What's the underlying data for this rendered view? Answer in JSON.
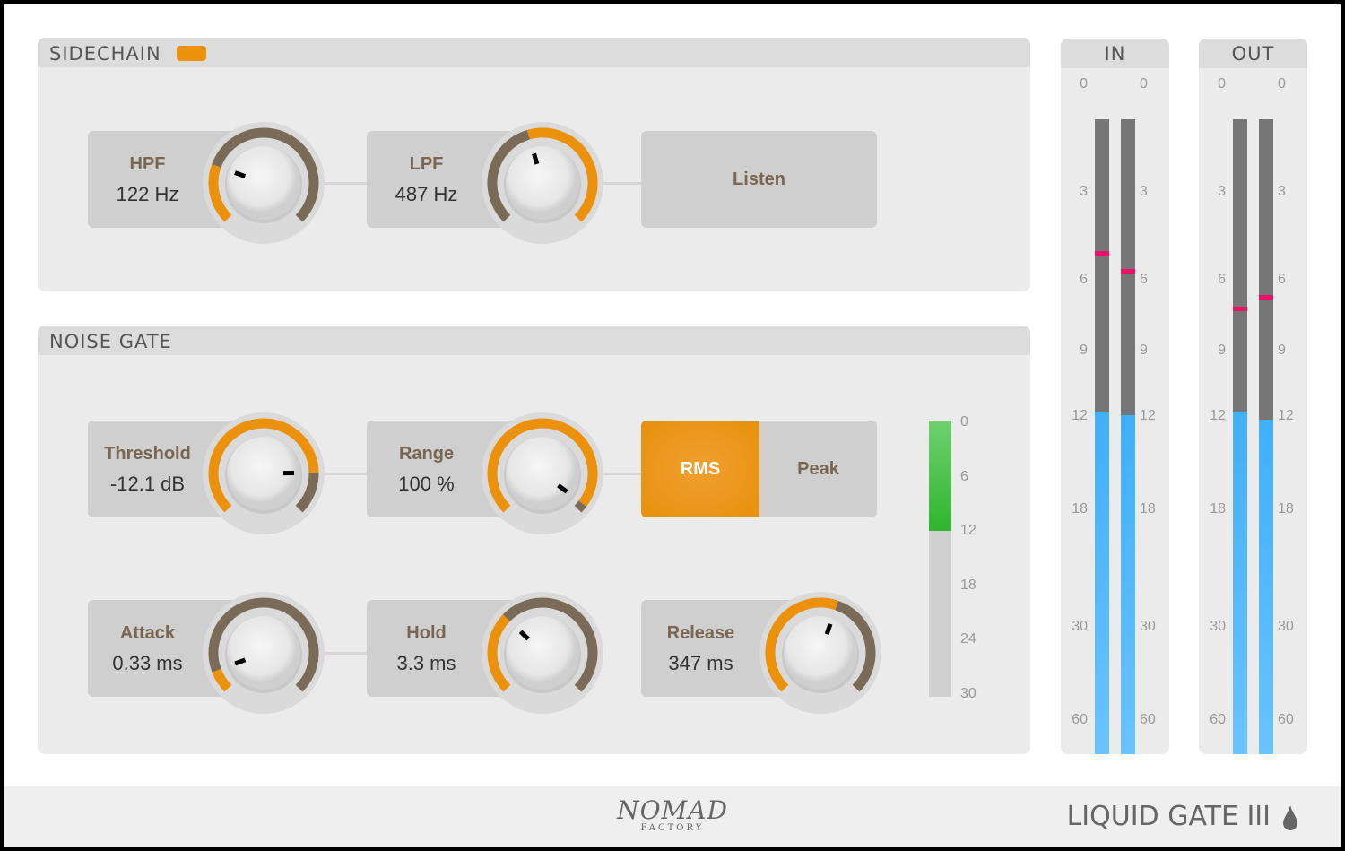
{
  "sidechain": {
    "title": "SIDECHAIN",
    "enabled": true,
    "hpf": {
      "label": "HPF",
      "value": "122 Hz",
      "fraction": 0.24,
      "fill": "start"
    },
    "lpf": {
      "label": "LPF",
      "value": "487 Hz",
      "fraction": 0.44,
      "fill": "end"
    },
    "listen_label": "Listen"
  },
  "gate": {
    "title": "NOISE GATE",
    "threshold": {
      "label": "Threshold",
      "value": "-12.1 dB",
      "fraction": 0.83,
      "fill": "start"
    },
    "range": {
      "label": "Range",
      "value": "100 %",
      "fraction": 0.97,
      "fill": "start"
    },
    "mode": {
      "options": [
        "RMS",
        "Peak"
      ],
      "selected": "RMS"
    },
    "attack": {
      "label": "Attack",
      "value": "0.33 ms",
      "fraction": 0.09,
      "fill": "start"
    },
    "hold": {
      "label": "Hold",
      "value": "3.3 ms",
      "fraction": 0.33,
      "fill": "start"
    },
    "release": {
      "label": "Release",
      "value": "347 ms",
      "fraction": 0.57,
      "fill": "start"
    },
    "gr_meter": {
      "ticks": [
        "0",
        "6",
        "12",
        "18",
        "24",
        "30"
      ],
      "level_db": 12
    }
  },
  "meters": {
    "ticks": [
      "0",
      "3",
      "6",
      "9",
      "12",
      "18",
      "30",
      "60"
    ],
    "in": {
      "title": "IN",
      "channels": [
        {
          "level_db": 10.2,
          "peak_db": 3.9
        },
        {
          "level_db": 10.3,
          "peak_db": 4.5
        }
      ]
    },
    "out": {
      "title": "OUT",
      "channels": [
        {
          "level_db": 10.2,
          "peak_db": 5.8
        },
        {
          "level_db": 10.5,
          "peak_db": 5.4
        }
      ]
    }
  },
  "footer": {
    "brand": "NOMAD",
    "brand_sub": "FACTORY",
    "product": "LIQUID GATE III"
  },
  "colors": {
    "accent": "#eb910c",
    "arc_off": "#7a6a58",
    "meter": "#3fb0fb",
    "peak": "#f0106a",
    "gr": "#3cbf3c"
  }
}
